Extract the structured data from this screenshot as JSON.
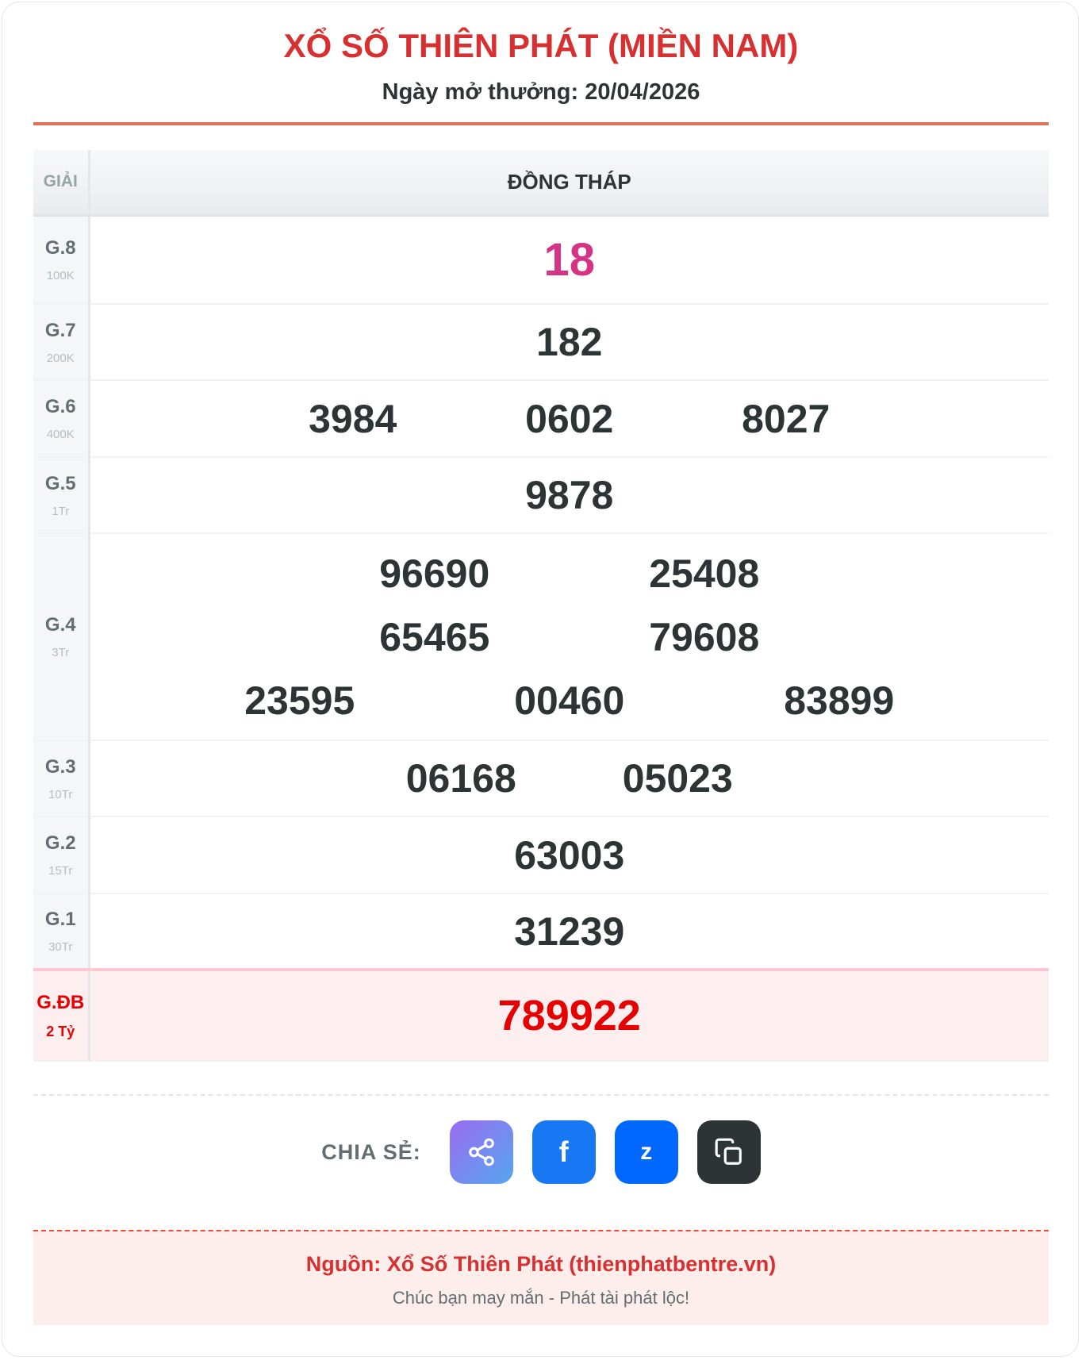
{
  "header": {
    "title": "XỔ SỐ THIÊN PHÁT (MIỀN NAM)",
    "subtitle": "Ngày mở thưởng: 20/04/2026"
  },
  "table": {
    "col_prize": "GIẢI",
    "col_province": "ĐỒNG THÁP",
    "rows": [
      {
        "name": "G.8",
        "value": "100K",
        "numbers": [
          "18"
        ]
      },
      {
        "name": "G.7",
        "value": "200K",
        "numbers": [
          "182"
        ]
      },
      {
        "name": "G.6",
        "value": "400K",
        "numbers": [
          "3984",
          "0602",
          "8027"
        ]
      },
      {
        "name": "G.5",
        "value": "1Tr",
        "numbers": [
          "9878"
        ]
      },
      {
        "name": "G.4",
        "value": "3Tr",
        "numbers": [
          "96690",
          "25408",
          "65465",
          "79608",
          "23595",
          "00460",
          "83899"
        ]
      },
      {
        "name": "G.3",
        "value": "10Tr",
        "numbers": [
          "06168",
          "05023"
        ]
      },
      {
        "name": "G.2",
        "value": "15Tr",
        "numbers": [
          "63003"
        ]
      },
      {
        "name": "G.1",
        "value": "30Tr",
        "numbers": [
          "31239"
        ]
      },
      {
        "name": "G.ĐB",
        "value": "2 Tỷ",
        "numbers": [
          "789922"
        ]
      }
    ]
  },
  "share": {
    "label": "CHIA SẺ:",
    "facebook": "f",
    "zalo": "z"
  },
  "footer": {
    "source": "Nguồn: Xổ Số Thiên Phát (thienphatbentre.vn)",
    "wish": "Chúc bạn may mắn - Phát tài phát lộc!"
  },
  "colors": {
    "accent": "#d63031",
    "g8": "#d63384",
    "special": "#e60000"
  }
}
